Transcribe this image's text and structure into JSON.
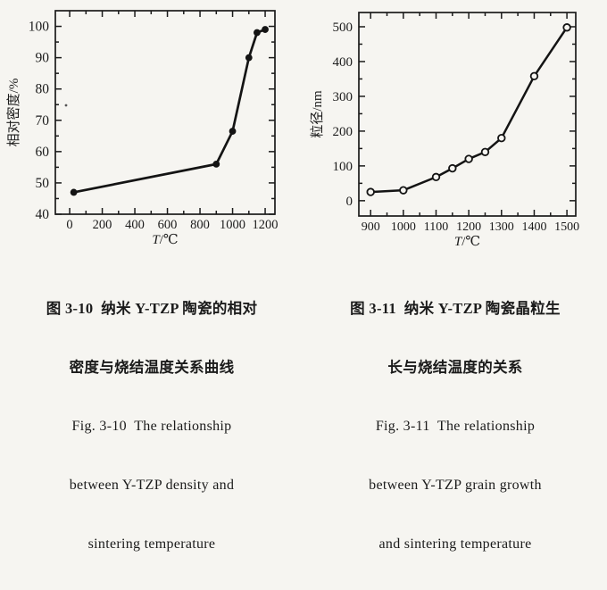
{
  "page": {
    "background": "#f6f5f1",
    "ink": "#1b1b1b"
  },
  "figures": [
    {
      "id": "figure-3-10",
      "caption_cn": [
        "图 3-10  纳米 Y-TZP 陶瓷的相对",
        "密度与烧结温度关系曲线"
      ],
      "caption_en": [
        "Fig. 3-10  The relationship",
        "between Y-TZP density and",
        "sintering temperature"
      ]
    },
    {
      "id": "figure-3-11",
      "caption_cn": [
        "图 3-11  纳米 Y-TZP 陶瓷晶粒生",
        "长与烧结温度的关系"
      ],
      "caption_en": [
        "Fig. 3-11  The relationship",
        "between Y-TZP grain growth",
        "and sintering temperature"
      ]
    }
  ],
  "chart_data": [
    {
      "type": "line",
      "title": "",
      "xlabel": "T/℃",
      "ylabel": "相对密度/%",
      "x": [
        25,
        900,
        1000,
        1100,
        1150,
        1200
      ],
      "y": [
        47,
        56,
        66.5,
        90,
        98,
        99
      ],
      "xticks": [
        0,
        200,
        400,
        600,
        800,
        1000,
        1200
      ],
      "yticks": [
        40,
        50,
        60,
        70,
        80,
        90,
        100
      ],
      "x_minor_step": 100,
      "y_minor_step": 5,
      "xlim": [
        -88,
        1260
      ],
      "ylim": [
        40,
        105
      ],
      "grid": false,
      "legend": "none",
      "marker": "circle-filled",
      "line_color": "#141414"
    },
    {
      "type": "line",
      "title": "",
      "xlabel": "T/℃",
      "ylabel": "粒径/nm",
      "x": [
        900,
        1000,
        1100,
        1150,
        1200,
        1250,
        1300,
        1400,
        1500
      ],
      "y": [
        25,
        30,
        68,
        93,
        120,
        140,
        180,
        358,
        498
      ],
      "xticks": [
        900,
        1000,
        1100,
        1200,
        1300,
        1400,
        1500
      ],
      "yticks": [
        0,
        100,
        200,
        300,
        400,
        500
      ],
      "x_minor_step": 50,
      "y_minor_step": 50,
      "xlim": [
        864,
        1527
      ],
      "ylim": [
        -44,
        541
      ],
      "grid": false,
      "legend": "none",
      "marker": "circle-open",
      "line_color": "#141414"
    }
  ]
}
